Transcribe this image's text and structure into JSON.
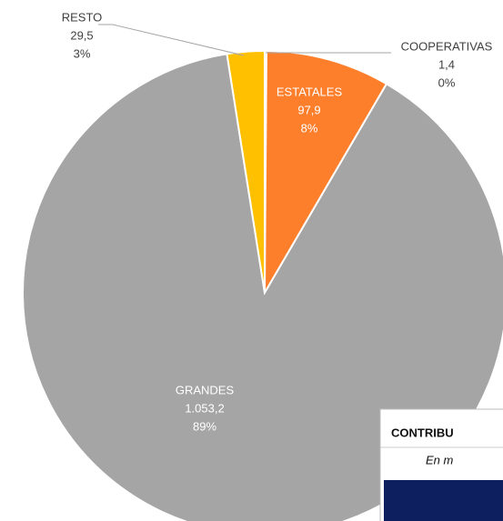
{
  "chart_data": {
    "type": "pie",
    "categories": [
      "COOPERATIVAS",
      "ESTATALES",
      "GRANDES",
      "RESTO"
    ],
    "values": [
      1.4,
      97.9,
      1053.2,
      29.5
    ],
    "value_labels": [
      "1,4",
      "97,9",
      "1.053,2",
      "29,5"
    ],
    "percent_labels": [
      "0%",
      "8%",
      "89%",
      "3%"
    ],
    "colors": [
      "#4472c4",
      "#fd7f2c",
      "#a5a5a5",
      "#ffc000"
    ]
  },
  "table": {
    "title": "CONTRIBU",
    "subtitle": "En m"
  }
}
